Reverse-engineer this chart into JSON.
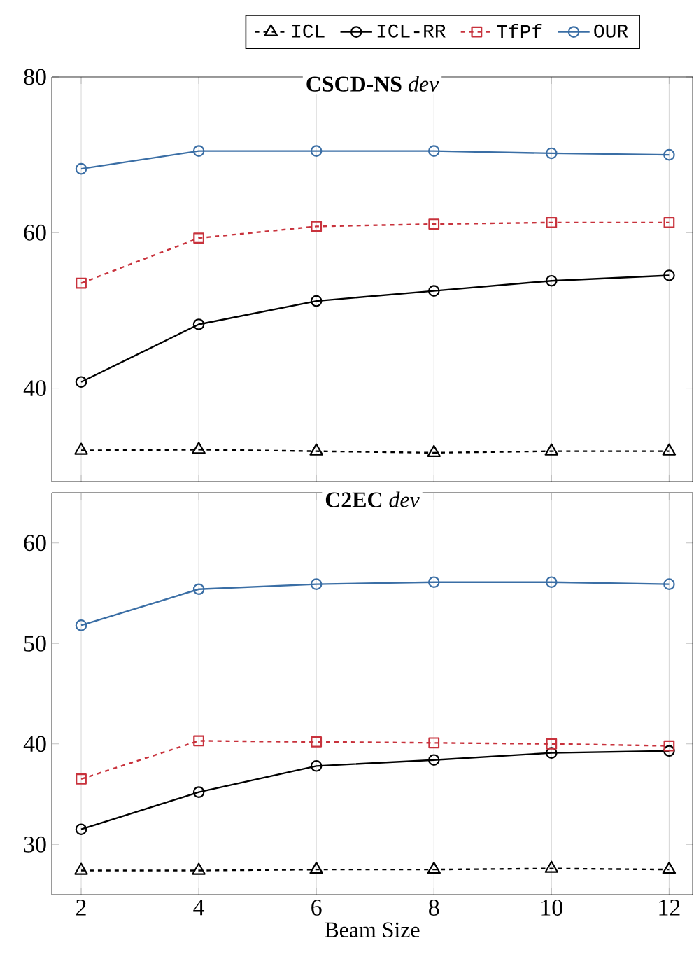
{
  "chart_data": [
    {
      "type": "line",
      "title": "**CSCD-NS** *dev*",
      "x": [
        2,
        4,
        6,
        8,
        10,
        12
      ],
      "xlim": [
        1.5,
        12.4
      ],
      "ylim": [
        28,
        80
      ],
      "xticks": [
        2,
        4,
        6,
        8,
        10,
        12
      ],
      "yticks": [
        40,
        60,
        80
      ],
      "grid": "x",
      "tick_labels": "y",
      "legend": "top",
      "series": [
        {
          "name": "ICL",
          "color": "#000000",
          "marker": "triangle",
          "line_style": "dashed",
          "values": [
            32.0,
            32.1,
            31.9,
            31.7,
            31.9,
            31.9
          ]
        },
        {
          "name": "ICL-RR",
          "color": "#000000",
          "marker": "circle",
          "line_style": "solid",
          "values": [
            40.8,
            48.2,
            51.2,
            52.5,
            53.8,
            54.5
          ]
        },
        {
          "name": "TfPf",
          "color": "#c8323c",
          "marker": "square",
          "line_style": "dashed",
          "values": [
            53.5,
            59.3,
            60.8,
            61.1,
            61.3,
            61.3
          ]
        },
        {
          "name": "OUR",
          "color": "#3a6ea5",
          "marker": "circle",
          "line_style": "solid",
          "values": [
            68.2,
            70.5,
            70.5,
            70.5,
            70.2,
            70.0
          ]
        }
      ]
    },
    {
      "type": "line",
      "title": "**C2EC** *dev*",
      "xlabel": "Beam Size",
      "x": [
        2,
        4,
        6,
        8,
        10,
        12
      ],
      "xlim": [
        1.5,
        12.4
      ],
      "ylim": [
        25,
        65
      ],
      "xticks": [
        2,
        4,
        6,
        8,
        10,
        12
      ],
      "yticks": [
        30,
        40,
        50,
        60
      ],
      "grid": "x",
      "series": [
        {
          "color": "#000000",
          "marker": "triangle",
          "line_style": "dashed",
          "values": [
            27.4,
            27.4,
            27.5,
            27.5,
            27.6,
            27.5
          ]
        },
        {
          "color": "#000000",
          "marker": "circle",
          "line_style": "solid",
          "values": [
            31.5,
            35.2,
            37.8,
            38.4,
            39.1,
            39.3
          ]
        },
        {
          "color": "#c8323c",
          "marker": "square",
          "line_style": "dashed",
          "values": [
            36.5,
            40.3,
            40.2,
            40.1,
            40.0,
            39.8
          ]
        },
        {
          "color": "#3a6ea5",
          "marker": "circle",
          "line_style": "solid",
          "values": [
            51.8,
            55.4,
            55.9,
            56.1,
            56.1,
            55.9
          ]
        }
      ]
    }
  ]
}
